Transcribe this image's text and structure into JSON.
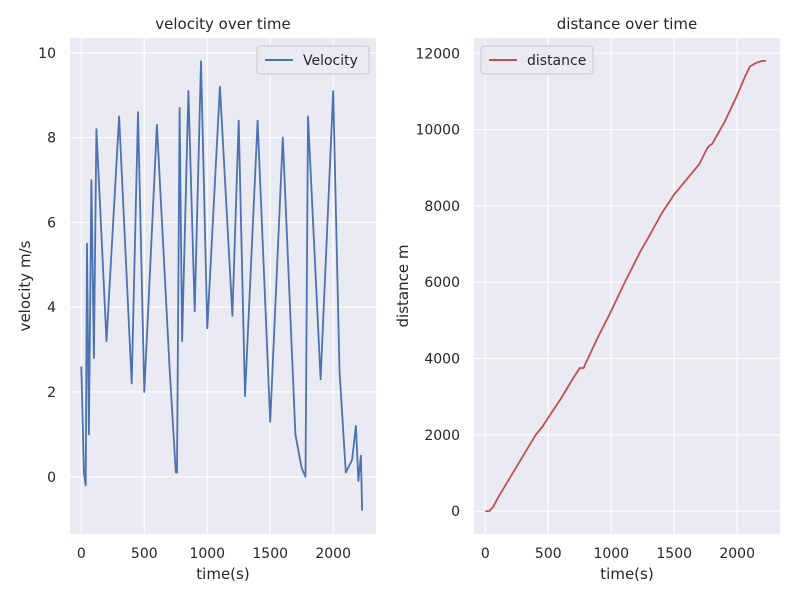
{
  "chart_data": [
    {
      "type": "line",
      "title": "velocity over time",
      "xlabel": "time(s)",
      "ylabel": "velocity m/s",
      "xlim": [
        -90,
        2340
      ],
      "ylim": [
        -1.35,
        10.35
      ],
      "xticks": [
        0,
        500,
        1000,
        1500,
        2000
      ],
      "yticks": [
        0,
        2,
        4,
        6,
        8,
        10
      ],
      "grid": true,
      "legend_position": "top-right",
      "series": [
        {
          "name": "Velocity",
          "color": "#4c72b0",
          "x": [
            0,
            20,
            35,
            45,
            60,
            80,
            100,
            120,
            200,
            300,
            400,
            450,
            500,
            600,
            700,
            750,
            760,
            780,
            800,
            850,
            900,
            950,
            1000,
            1100,
            1200,
            1250,
            1300,
            1400,
            1500,
            1600,
            1700,
            1750,
            1780,
            1800,
            1900,
            2000,
            2050,
            2100,
            2150,
            2180,
            2200,
            2220,
            2230
          ],
          "values": [
            2.6,
            0.1,
            -0.2,
            5.5,
            1.0,
            7.0,
            2.8,
            8.2,
            3.2,
            8.5,
            2.2,
            8.6,
            2.0,
            8.3,
            2.6,
            0.1,
            0.1,
            8.7,
            3.2,
            9.1,
            3.9,
            9.8,
            3.5,
            9.2,
            3.8,
            8.4,
            1.9,
            8.4,
            1.3,
            8.0,
            1.0,
            0.2,
            0.0,
            8.5,
            2.3,
            9.1,
            2.5,
            0.1,
            0.4,
            1.2,
            -0.1,
            0.5,
            -0.8
          ]
        }
      ]
    },
    {
      "type": "line",
      "title": "distance over time",
      "xlabel": "time(s)",
      "ylabel": "distance m",
      "xlim": [
        -90,
        2340
      ],
      "ylim": [
        -600,
        12400
      ],
      "xticks": [
        0,
        500,
        1000,
        1500,
        2000
      ],
      "yticks": [
        0,
        2000,
        4000,
        6000,
        8000,
        10000,
        12000
      ],
      "grid": true,
      "legend_position": "top-left",
      "series": [
        {
          "name": "distance",
          "color": "#c44e52",
          "x": [
            0,
            30,
            60,
            100,
            200,
            300,
            400,
            450,
            500,
            600,
            700,
            750,
            780,
            800,
            900,
            1000,
            1100,
            1200,
            1230,
            1300,
            1400,
            1500,
            1600,
            1700,
            1760,
            1780,
            1800,
            1900,
            2000,
            2050,
            2100,
            2150,
            2200,
            2230
          ],
          "values": [
            0,
            0,
            100,
            350,
            900,
            1450,
            2000,
            2200,
            2450,
            2950,
            3500,
            3750,
            3750,
            3900,
            4600,
            5250,
            5950,
            6600,
            6800,
            7200,
            7800,
            8300,
            8700,
            9100,
            9500,
            9580,
            9620,
            10200,
            10900,
            11300,
            11650,
            11750,
            11800,
            11800
          ]
        }
      ]
    }
  ]
}
